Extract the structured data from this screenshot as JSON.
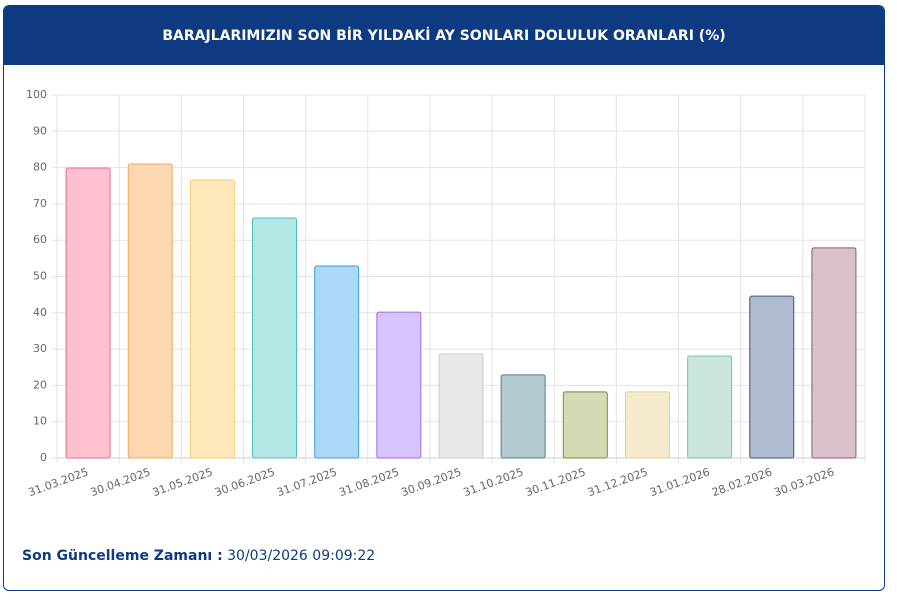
{
  "chart_data": {
    "type": "bar",
    "title": "BARAJLARIMIZIN SON BİR YILDAKİ AY SONLARI DOLULUK ORANLARI (%)",
    "categories": [
      "31.03.2025",
      "30.04.2025",
      "31.05.2025",
      "30.06.2025",
      "31.07.2025",
      "31.08.2025",
      "30.09.2025",
      "31.10.2025",
      "30.11.2025",
      "31.12.2025",
      "31.01.2026",
      "28.02.2026",
      "30.03.2026"
    ],
    "values": [
      79.9,
      81.0,
      76.6,
      66.1,
      52.9,
      40.2,
      28.7,
      22.9,
      18.2,
      18.2,
      28.1,
      44.6,
      57.9
    ],
    "colors": [
      "#ffc0d0",
      "#fdd7b0",
      "#ffe9bb",
      "#b5e6e6",
      "#acd8f6",
      "#d6c5fd",
      "#e7e8ea",
      "#b3cbd0",
      "#d4dab4",
      "#f5eacc",
      "#cbe6df",
      "#aebbcf",
      "#d8c1ca"
    ],
    "border_colors": [
      "#ef6a8e",
      "#f0a75e",
      "#f2cd6f",
      "#4cbcbc",
      "#3a9de0",
      "#9a6ef0",
      "#c9cbcf",
      "#4f7d86",
      "#7d8a33",
      "#e6cf8c",
      "#7bbfac",
      "#3e5878",
      "#8e5a70"
    ],
    "ylim": [
      0,
      100
    ],
    "yticks": [
      0,
      10,
      20,
      30,
      40,
      50,
      60,
      70,
      80,
      90,
      100
    ],
    "grid": true
  },
  "footer": {
    "label": "Son Güncelleme Zamanı :",
    "value": "30/03/2026 09:09:22"
  }
}
